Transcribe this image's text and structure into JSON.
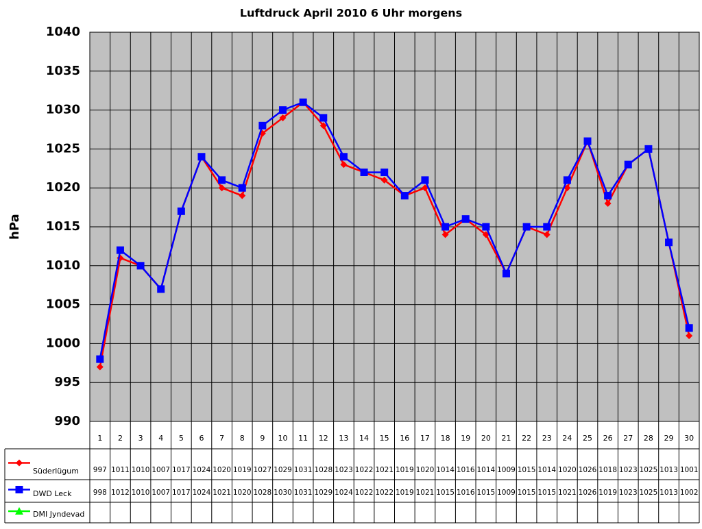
{
  "chart_data": {
    "type": "line",
    "title": "Luftdruck April 2010 6 Uhr morgens",
    "y_label": "hPa",
    "categories": [
      "1",
      "2",
      "3",
      "4",
      "5",
      "6",
      "7",
      "8",
      "9",
      "10",
      "11",
      "12",
      "13",
      "14",
      "15",
      "16",
      "17",
      "18",
      "19",
      "20",
      "21",
      "22",
      "23",
      "24",
      "25",
      "26",
      "27",
      "28",
      "29",
      "30"
    ],
    "series": [
      {
        "name": "Süderlügum",
        "color": "#ff0000",
        "marker": "diamond",
        "values": [
          997,
          1011,
          1010,
          1007,
          1017,
          1024,
          1020,
          1019,
          1027,
          1029,
          1031,
          1028,
          1023,
          1022,
          1021,
          1019,
          1020,
          1014,
          1016,
          1014,
          1009,
          1015,
          1014,
          1020,
          1026,
          1018,
          1023,
          1025,
          1013,
          1001
        ]
      },
      {
        "name": "DWD Leck",
        "color": "#0000ff",
        "marker": "square",
        "values": [
          998,
          1012,
          1010,
          1007,
          1017,
          1024,
          1021,
          1020,
          1028,
          1030,
          1031,
          1029,
          1024,
          1022,
          1022,
          1019,
          1021,
          1015,
          1016,
          1015,
          1009,
          1015,
          1015,
          1021,
          1026,
          1019,
          1023,
          1025,
          1013,
          1002
        ]
      },
      {
        "name": "DMI Jyndevad",
        "color": "#00ff00",
        "marker": "triangle",
        "values": [
          null,
          null,
          null,
          null,
          null,
          null,
          null,
          null,
          null,
          null,
          null,
          null,
          null,
          null,
          null,
          null,
          null,
          null,
          null,
          null,
          null,
          null,
          null,
          null,
          null,
          null,
          null,
          null,
          null,
          null
        ]
      }
    ],
    "ylim": [
      990,
      1040
    ],
    "yticks": [
      990,
      995,
      1000,
      1005,
      1010,
      1015,
      1020,
      1025,
      1030,
      1035,
      1040
    ],
    "grid": true,
    "data_table": true
  }
}
